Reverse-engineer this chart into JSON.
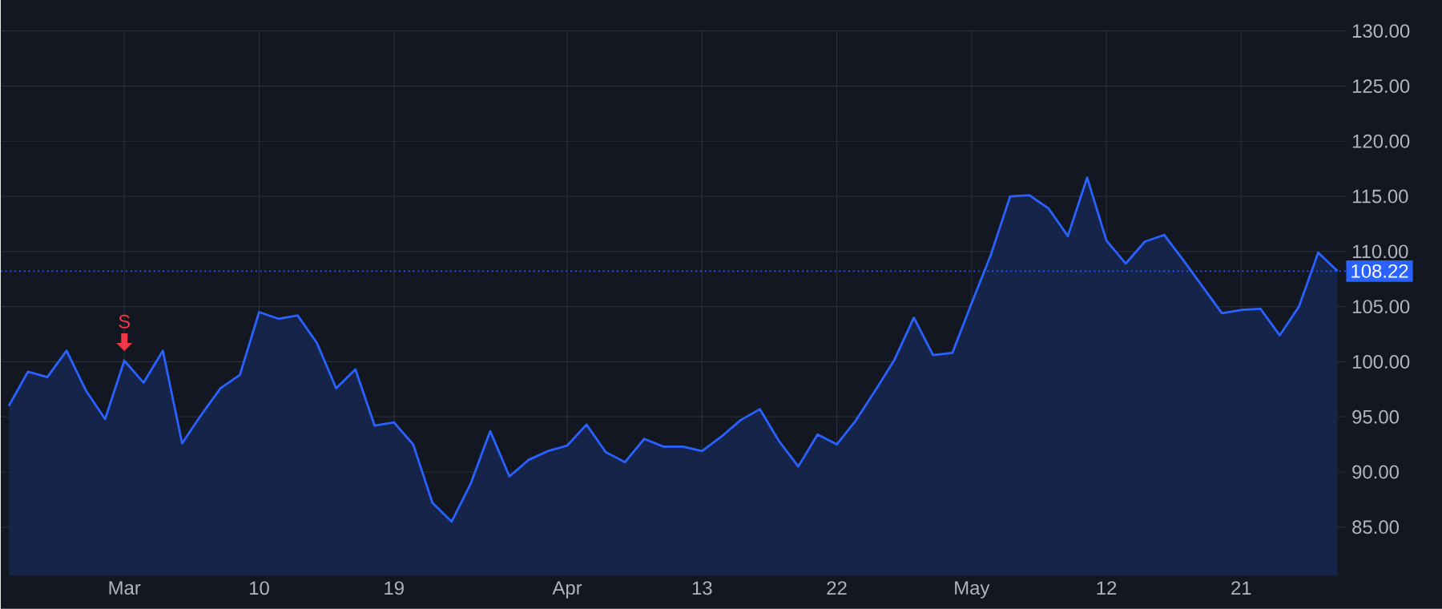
{
  "chart_data": {
    "type": "area",
    "categories": [
      null,
      null,
      null,
      null,
      null,
      null,
      "Mar",
      null,
      null,
      null,
      null,
      null,
      null,
      "10",
      null,
      null,
      null,
      null,
      null,
      null,
      "19",
      null,
      null,
      null,
      null,
      null,
      null,
      null,
      null,
      "Apr",
      null,
      null,
      null,
      null,
      null,
      null,
      "13",
      null,
      null,
      null,
      null,
      null,
      null,
      "22",
      null,
      null,
      null,
      null,
      null,
      null,
      "May",
      null,
      null,
      null,
      null,
      null,
      null,
      "12",
      null,
      null,
      null,
      null,
      null,
      null,
      "21",
      null,
      null,
      null,
      null,
      null
    ],
    "series": [
      {
        "color": "#2962ff",
        "values": [
          96.0,
          99.1,
          98.6,
          101.0,
          97.4,
          94.8,
          100.1,
          98.1,
          101.0,
          92.6,
          95.2,
          97.6,
          98.8,
          104.5,
          103.9,
          104.2,
          101.7,
          97.6,
          99.3,
          94.2,
          94.5,
          92.5,
          87.2,
          85.5,
          89.0,
          93.7,
          89.6,
          91.1,
          91.9,
          92.4,
          94.3,
          91.8,
          90.9,
          93.0,
          92.3,
          92.3,
          91.9,
          93.2,
          94.7,
          95.7,
          92.8,
          90.5,
          93.4,
          92.5,
          94.7,
          97.4,
          100.2,
          104.0,
          100.6,
          100.8,
          105.3,
          109.7,
          115.0,
          115.1,
          113.9,
          111.4,
          116.7,
          111.0,
          108.9,
          110.9,
          111.5,
          109.2,
          106.8,
          104.4,
          104.7,
          104.8,
          102.4,
          105.0,
          109.9,
          108.22
        ]
      }
    ],
    "ylim": [
      80.6,
      130
    ],
    "yticks": [
      {
        "value": 85,
        "label": "85.00"
      },
      {
        "value": 90,
        "label": "90.00"
      },
      {
        "value": 95,
        "label": "95.00"
      },
      {
        "value": 100,
        "label": "100.00"
      },
      {
        "value": 105,
        "label": "105.00"
      },
      {
        "value": 110,
        "label": "110.00"
      },
      {
        "value": 115,
        "label": "115.00"
      },
      {
        "value": 120,
        "label": "120.00"
      },
      {
        "value": 125,
        "label": "125.00"
      },
      {
        "value": 130,
        "label": "130.00"
      }
    ],
    "ref_lines": [
      {
        "axis": "y",
        "value": 108.22,
        "label": "108.22",
        "color": "#2962ff",
        "line_style": "dotted"
      }
    ],
    "annotations": [
      {
        "text": "S",
        "x": "Mar",
        "y": 100.1
      }
    ],
    "grid": true,
    "marker": "none",
    "line_style": "solid"
  }
}
